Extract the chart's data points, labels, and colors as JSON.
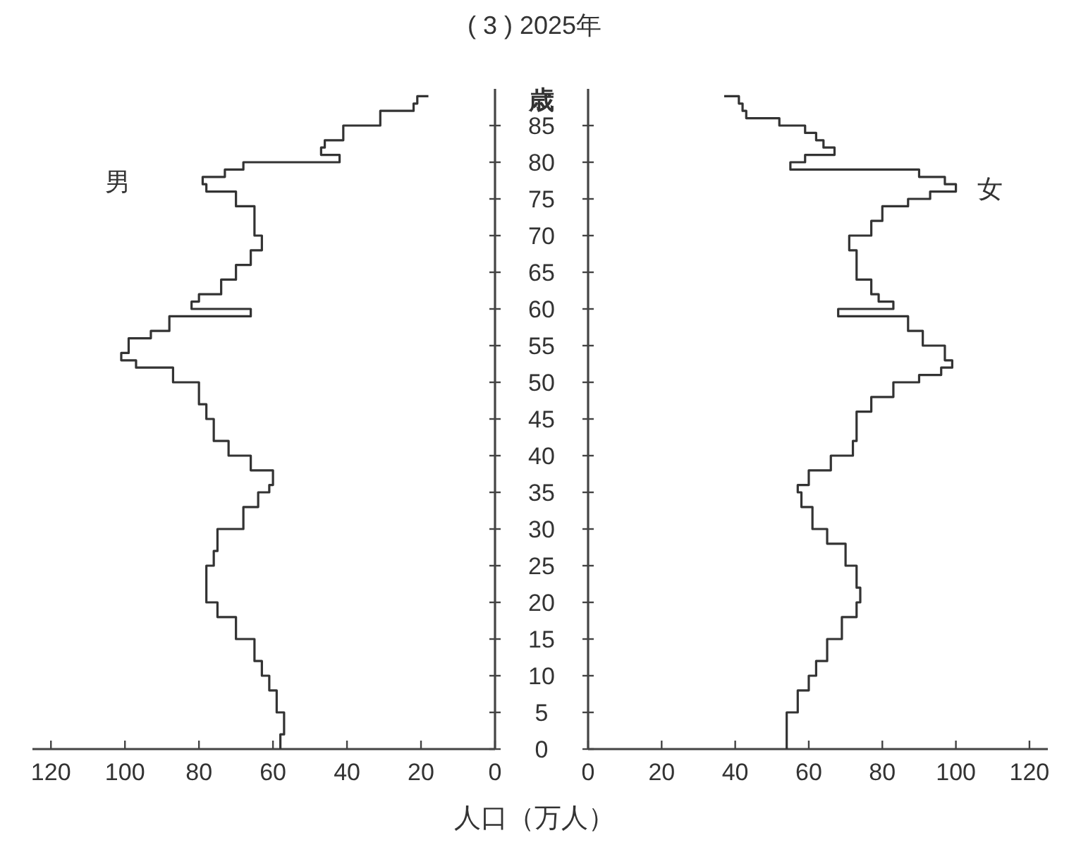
{
  "chart_data": [
    {
      "type": "step",
      "orientation": "horizontal",
      "title": "( 3 ) 2025年",
      "xlabel": "人口（万人）",
      "xlim": [
        125,
        0
      ],
      "xticks": [
        120,
        100,
        80,
        60,
        40,
        20,
        0
      ],
      "ylim": [
        0,
        90
      ],
      "yticks": [
        0,
        5,
        10,
        15,
        20,
        25,
        30,
        35,
        40,
        45,
        50,
        55,
        60,
        65,
        70,
        75,
        80,
        85
      ],
      "tick_labels": "x",
      "series": [
        {
          "name": "男",
          "color": "#333333",
          "x": [
            0,
            2,
            5,
            8,
            10,
            12,
            15,
            18,
            20,
            22,
            25,
            27,
            30,
            33,
            35,
            36,
            38,
            40,
            42,
            45,
            47,
            50,
            52,
            53,
            54,
            56,
            57,
            59,
            60,
            61,
            62,
            64,
            66,
            68,
            70,
            72,
            74,
            76,
            77,
            78,
            79,
            80,
            81,
            82,
            83,
            85,
            87,
            88,
            89
          ],
          "values": [
            58,
            57,
            59,
            61,
            63,
            65,
            70,
            75,
            78,
            78,
            76,
            75,
            68,
            64,
            61,
            60,
            66,
            72,
            76,
            78,
            80,
            87,
            97,
            101,
            99,
            93,
            88,
            66,
            82,
            80,
            74,
            70,
            66,
            63,
            65,
            65,
            70,
            78,
            79,
            73,
            68,
            42,
            47,
            46,
            41,
            31,
            22,
            21,
            18
          ]
        }
      ]
    },
    {
      "type": "step",
      "orientation": "horizontal",
      "ylabel": "歳",
      "xlim": [
        0,
        125
      ],
      "xticks": [
        0,
        20,
        40,
        60,
        80,
        100,
        120
      ],
      "ylim": [
        0,
        90
      ],
      "yticks": [
        0,
        5,
        10,
        15,
        20,
        25,
        30,
        35,
        40,
        45,
        50,
        55,
        60,
        65,
        70,
        75,
        80,
        85
      ],
      "series": [
        {
          "name": "女",
          "color": "#333333",
          "x": [
            0,
            2,
            5,
            8,
            10,
            12,
            15,
            18,
            20,
            22,
            25,
            28,
            30,
            33,
            35,
            36,
            38,
            40,
            42,
            44,
            46,
            48,
            50,
            51,
            52,
            53,
            55,
            57,
            58,
            59,
            60,
            61,
            62,
            64,
            66,
            68,
            70,
            72,
            74,
            75,
            76,
            77,
            78,
            79,
            80,
            81,
            82,
            83,
            84,
            85,
            86,
            87,
            88,
            89
          ],
          "values": [
            54,
            54,
            57,
            60,
            62,
            65,
            69,
            73,
            74,
            73,
            70,
            65,
            61,
            58,
            57,
            60,
            66,
            72,
            73,
            73,
            77,
            83,
            90,
            96,
            99,
            97,
            91,
            87,
            87,
            68,
            83,
            79,
            77,
            73,
            73,
            71,
            77,
            80,
            87,
            93,
            100,
            97,
            90,
            55,
            59,
            67,
            64,
            62,
            59,
            52,
            43,
            42,
            41,
            37
          ]
        }
      ]
    }
  ]
}
